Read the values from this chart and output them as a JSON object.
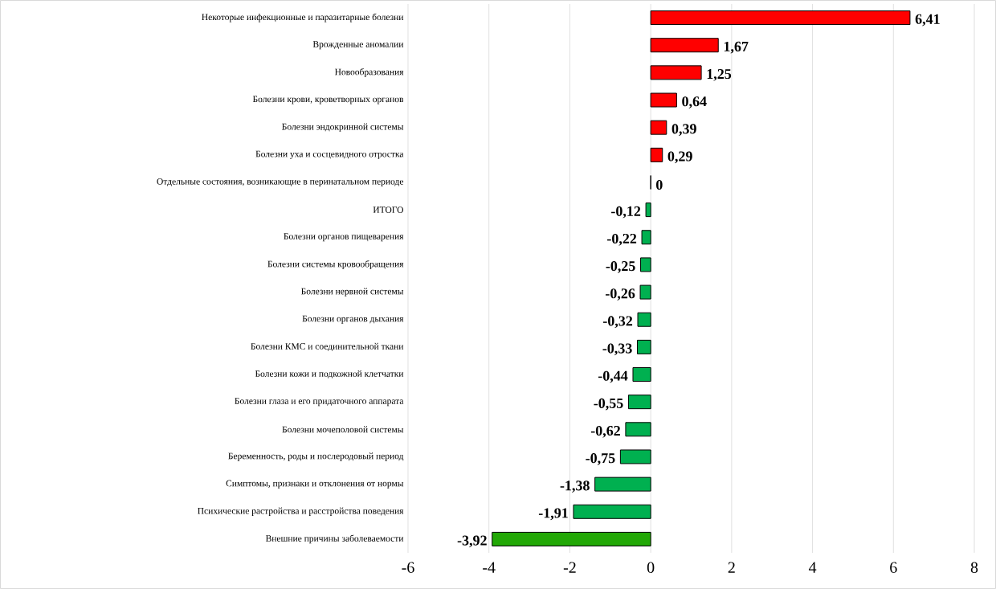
{
  "chart_data": {
    "type": "bar",
    "orientation": "horizontal",
    "grid": "x",
    "categories": [
      "Некоторые инфекционные и паразитарные болезни",
      "Врожденные аномалии",
      "Новообразования",
      "Болезни крови, кроветворных органов",
      "Болезни эндокринной системы",
      "Болезни уха и сосцевидного отростка",
      "Отдельные состояния, возникающие в перинатальном периоде",
      "ИТОГО",
      "Болезни органов пищеварения",
      "Болезни системы кровообращения",
      "Болезни нервной системы",
      "Болезни органов дыхания",
      "Болезни КМС и соединительной ткани",
      "Болезни кожи и подкожной клетчатки",
      "Болезни глаза и его придаточного аппарата",
      "Болезни мочеполовой системы",
      "Беременность, роды и послеродовый период",
      "Симптомы, признаки и отклонения от нормы",
      "Психические растройства и расстройства поведения",
      "Внешние причины заболеваемости"
    ],
    "values": [
      6.41,
      1.67,
      1.25,
      0.64,
      0.39,
      0.29,
      0,
      -0.12,
      -0.22,
      -0.25,
      -0.26,
      -0.32,
      -0.33,
      -0.44,
      -0.55,
      -0.62,
      -0.75,
      -1.38,
      -1.91,
      -3.92
    ],
    "value_labels": [
      "6,41",
      "1,67",
      "1,25",
      "0,64",
      "0,39",
      "0,29",
      "0",
      "-0,12",
      "-0,22",
      "-0,25",
      "-0,26",
      "-0,32",
      "-0,33",
      "-0,44",
      "-0,55",
      "-0,62",
      "-0,75",
      "-1,38",
      "-1,91",
      "-3,92"
    ],
    "colors": [
      "#ff0000",
      "#ff0000",
      "#ff0000",
      "#ff0000",
      "#ff0000",
      "#ff0000",
      "#ff0000",
      "#00b050",
      "#00b050",
      "#00b050",
      "#00b050",
      "#00b050",
      "#00b050",
      "#00b050",
      "#00b050",
      "#00b050",
      "#00b050",
      "#00b050",
      "#00b050",
      "#22a806"
    ],
    "xlim": [
      -6,
      8
    ],
    "xticks": [
      -6,
      -4,
      -2,
      0,
      2,
      4,
      6,
      8
    ]
  }
}
